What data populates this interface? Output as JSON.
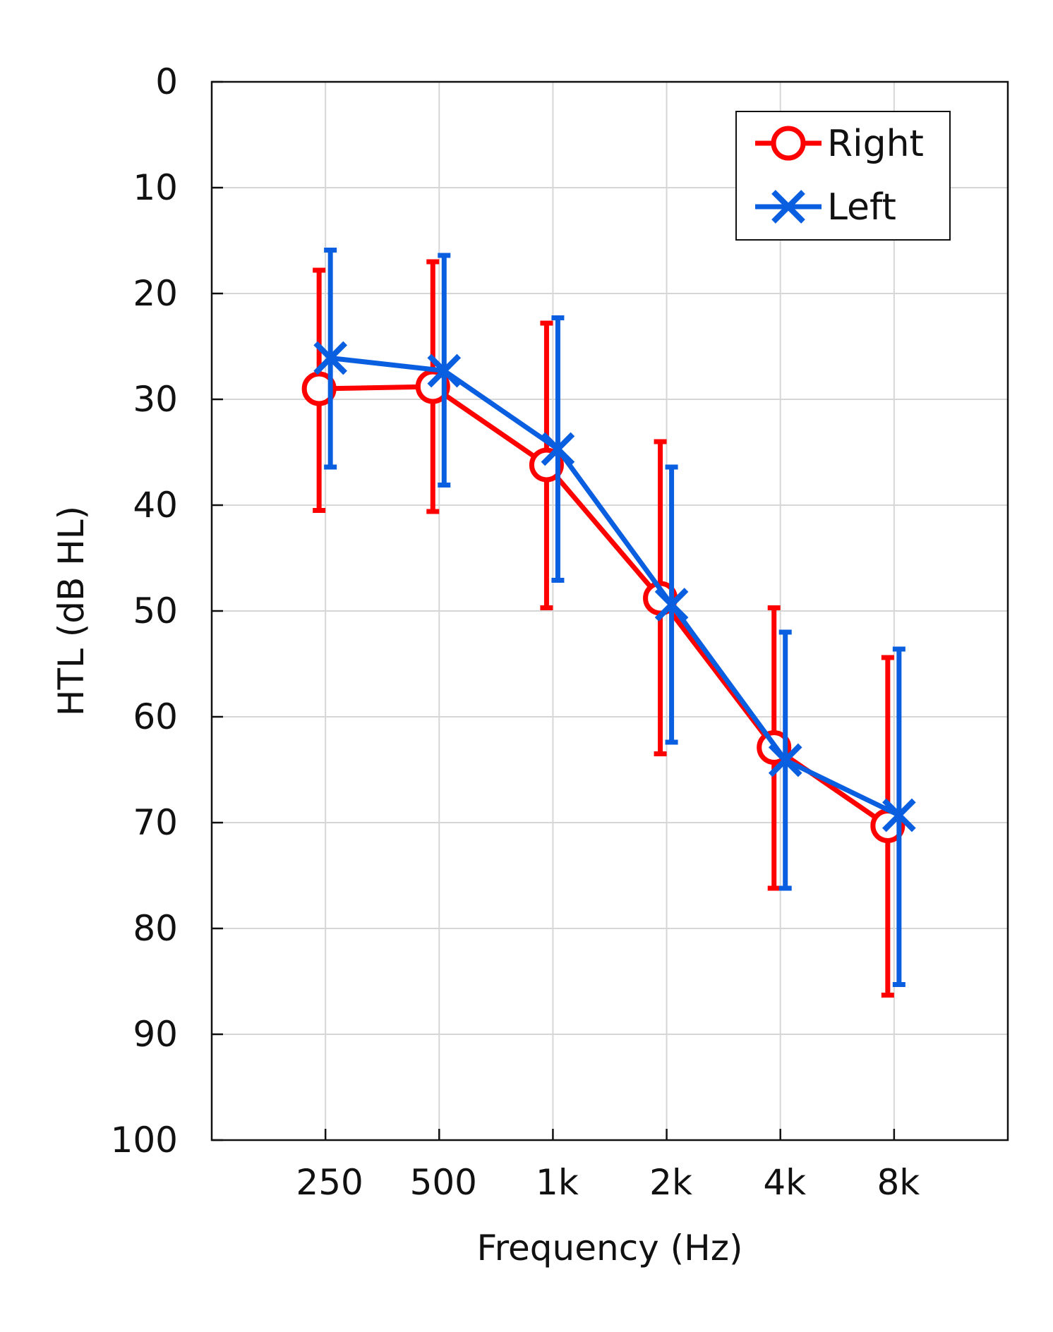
{
  "chart_data": {
    "type": "line",
    "xlabel": "Frequency (Hz)",
    "ylabel": "HTL (dB HL)",
    "categories": [
      "250",
      "500",
      "1k",
      "2k",
      "4k",
      "8k"
    ],
    "ylim": [
      0,
      100
    ],
    "y_inverted": true,
    "yticks": [
      "0",
      "10",
      "20",
      "30",
      "40",
      "50",
      "60",
      "70",
      "80",
      "90",
      "100"
    ],
    "grid": true,
    "legend_position": "top-right",
    "error_bars": true,
    "series": [
      {
        "name": "Right",
        "marker": "circle",
        "color": "#ff0000",
        "values": [
          29.0,
          28.8,
          36.2,
          48.8,
          62.9,
          70.3
        ],
        "err_low": [
          17.8,
          17.0,
          22.8,
          34.0,
          49.7,
          54.4
        ],
        "err_high": [
          40.5,
          40.6,
          49.7,
          63.5,
          76.2,
          86.3
        ]
      },
      {
        "name": "Left",
        "marker": "x",
        "color": "#0a5ee0",
        "values": [
          26.1,
          27.3,
          34.7,
          49.4,
          64.1,
          69.3
        ],
        "err_low": [
          15.9,
          16.4,
          22.3,
          36.4,
          52.0,
          53.6
        ],
        "err_high": [
          36.4,
          38.1,
          47.1,
          62.4,
          76.2,
          85.3
        ]
      }
    ]
  }
}
